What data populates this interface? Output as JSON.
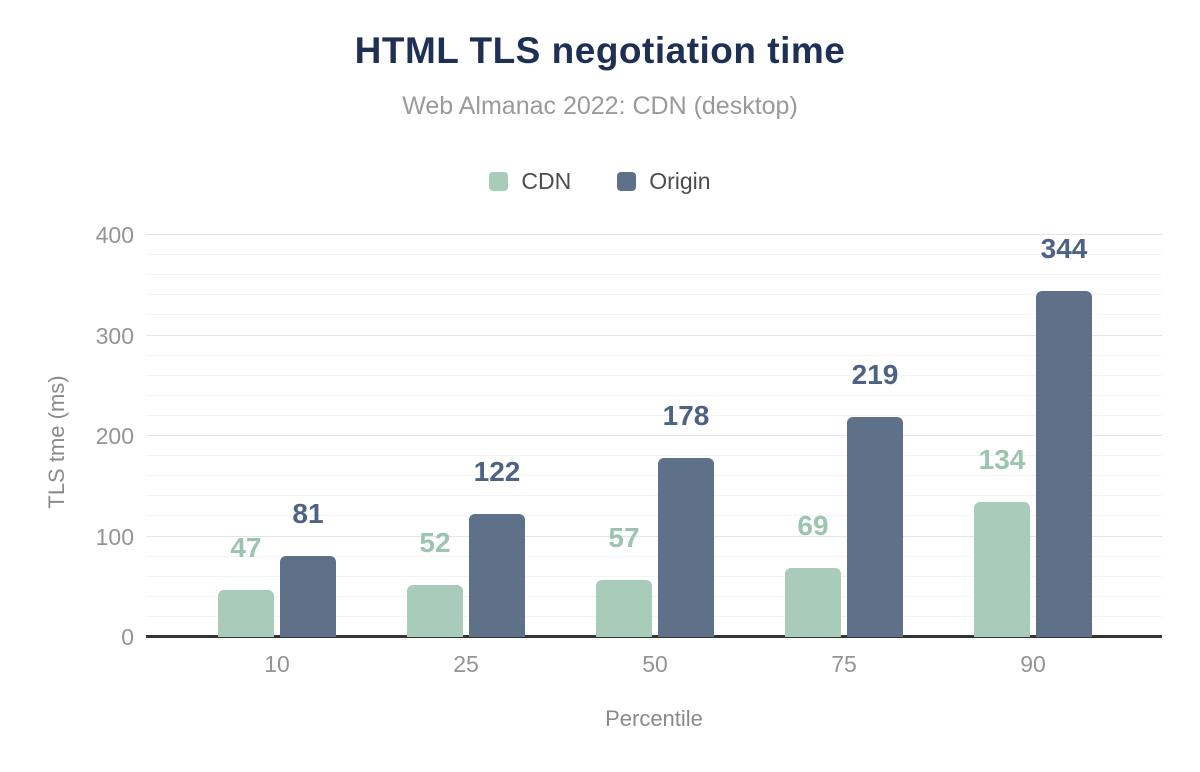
{
  "chart_data": {
    "type": "bar",
    "title": "HTML TLS negotiation time",
    "subtitle": "Web Almanac 2022: CDN (desktop)",
    "xlabel": "Percentile",
    "ylabel": "TLS tme (ms)",
    "categories": [
      "10",
      "25",
      "50",
      "75",
      "90"
    ],
    "series": [
      {
        "name": "CDN",
        "values": [
          47,
          52,
          57,
          69,
          134
        ],
        "color": "#a9ccba",
        "label_color": "#9cc5af"
      },
      {
        "name": "Origin",
        "values": [
          81,
          122,
          178,
          219,
          344
        ],
        "color": "#5f7089",
        "label_color": "#4e6285"
      }
    ],
    "ylim": [
      0,
      400
    ],
    "yticks": [
      0,
      100,
      200,
      300,
      400
    ],
    "minor_grid_step": 20,
    "grid": true,
    "legend_position": "top"
  },
  "colors": {
    "title": "#1e3054",
    "subtitle": "#9a9a9a",
    "axis_line": "#343434",
    "tick_label": "#949494",
    "major_grid": "#e4e4e4",
    "minor_grid": "#f4f4f4"
  }
}
